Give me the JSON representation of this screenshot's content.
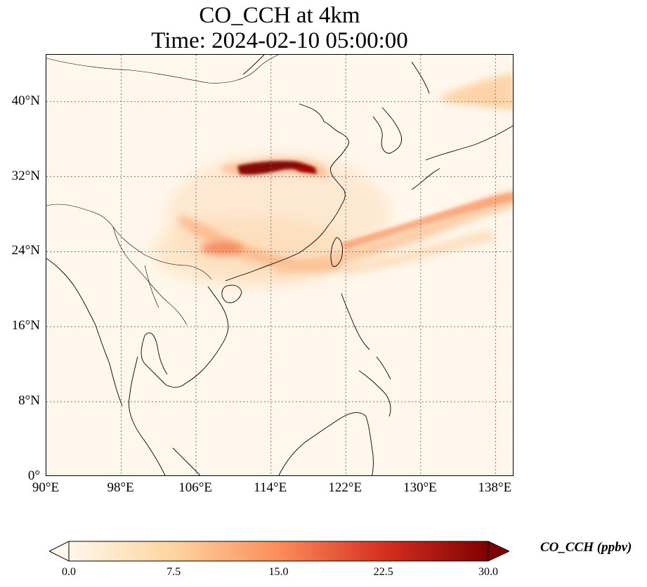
{
  "title_line1": "CO_CCH at 4km",
  "title_line2": "Time: 2024-02-10 05:00:00",
  "map": {
    "lon_range": [
      90,
      140
    ],
    "lat_range": [
      0,
      45
    ],
    "y_ticks": [
      "40°N",
      "32°N",
      "24°N",
      "16°N",
      "8°N",
      "0°"
    ],
    "x_ticks": [
      "90°E",
      "98°E",
      "106°E",
      "114°E",
      "122°E",
      "130°E",
      "138°E"
    ],
    "gridline_lons": [
      98,
      106,
      114,
      122,
      130,
      138
    ],
    "gridline_lats": [
      8,
      16,
      24,
      32,
      40
    ],
    "plumes": [
      {
        "lon": 115.0,
        "lat": 32.8,
        "value": 30.0
      },
      {
        "lon": 110.0,
        "lat": 24.3,
        "value": 13.0
      },
      {
        "lon": 120.0,
        "lat": 25.5,
        "value": 11.0
      },
      {
        "lon": 133.0,
        "lat": 28.5,
        "value": 10.0
      },
      {
        "lon": 137.0,
        "lat": 41.0,
        "value": 7.0
      }
    ]
  },
  "colorbar": {
    "label": "CO_CCH (ppbv)",
    "min": 0.0,
    "max": 30.0,
    "ticks": [
      "0.0",
      "7.5",
      "15.0",
      "22.5",
      "30.0"
    ],
    "colors": [
      "#fff7ec",
      "#fdd49e",
      "#fc8d59",
      "#d7301f",
      "#7f0000"
    ],
    "extend": "both"
  }
}
